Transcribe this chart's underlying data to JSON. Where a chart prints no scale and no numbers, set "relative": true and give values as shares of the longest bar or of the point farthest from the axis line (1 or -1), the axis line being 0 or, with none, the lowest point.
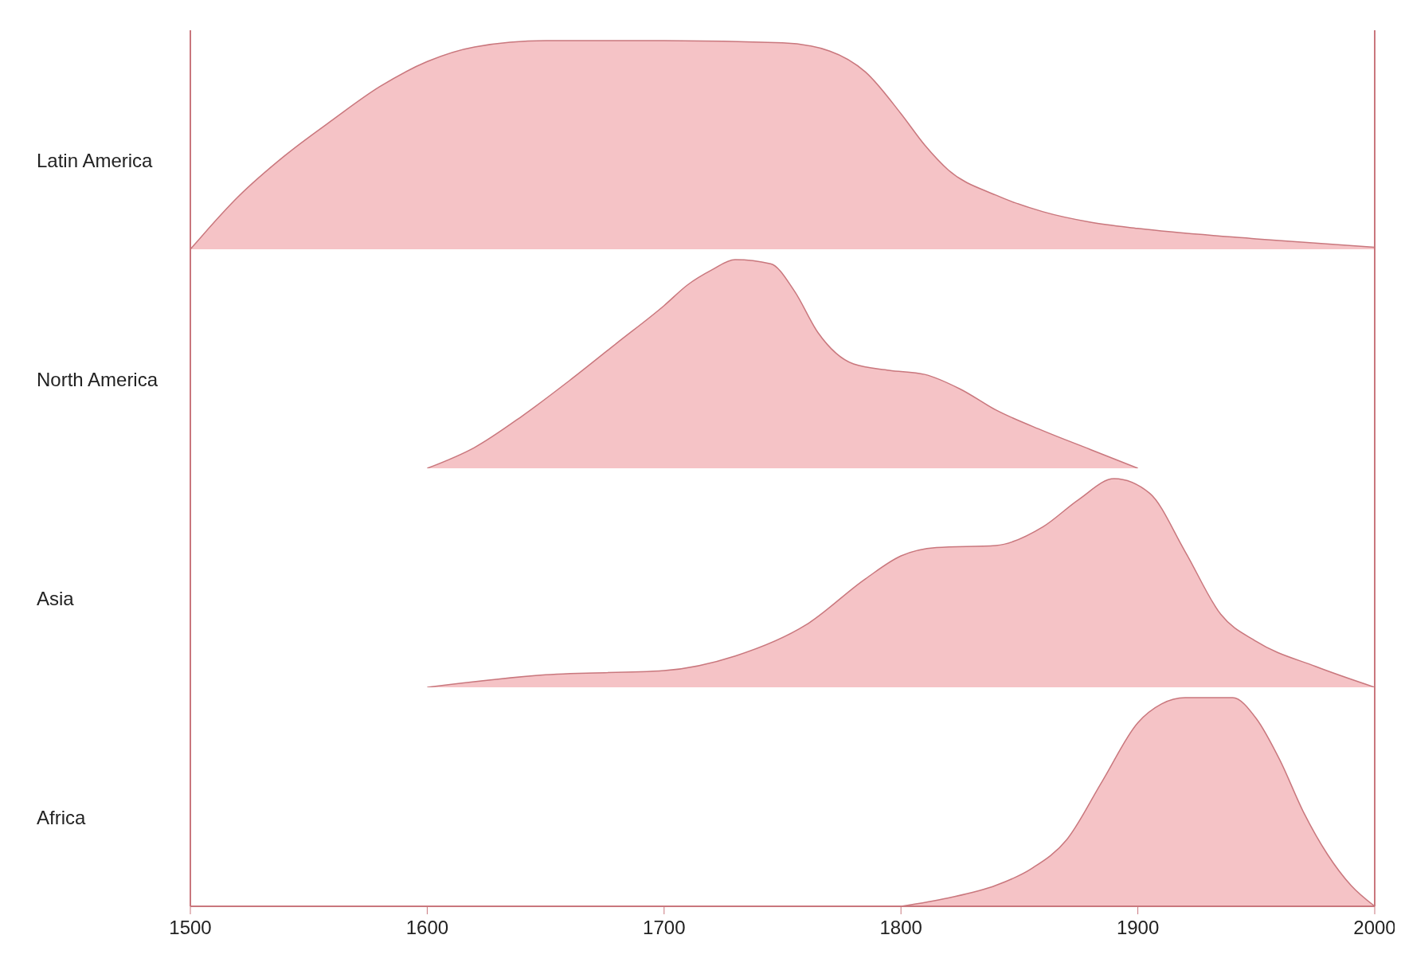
{
  "chart_data": [
    {
      "type": "area",
      "ylabel": "Latin America",
      "relative": true,
      "x": [
        1500,
        1520,
        1540,
        1560,
        1580,
        1600,
        1620,
        1650,
        1700,
        1750,
        1770,
        1785,
        1800,
        1810,
        1820,
        1840,
        1860,
        1880,
        1900,
        1950,
        2000
      ],
      "values": [
        0,
        0.25,
        0.45,
        0.62,
        0.78,
        0.9,
        0.97,
        1.0,
        1.0,
        0.99,
        0.95,
        0.85,
        0.65,
        0.5,
        0.38,
        0.26,
        0.18,
        0.13,
        0.1,
        0.05,
        0.01
      ],
      "color": "#f5c3c6",
      "xlim": [
        1500,
        2000
      ],
      "xticks": [
        1500,
        1600,
        1700,
        1800,
        1900,
        2000
      ],
      "tick_labels": false
    },
    {
      "type": "area",
      "ylabel": "North America",
      "relative": true,
      "x": [
        1600,
        1620,
        1640,
        1660,
        1680,
        1700,
        1710,
        1720,
        1730,
        1745,
        1755,
        1765,
        1780,
        1795,
        1810,
        1825,
        1840,
        1860,
        1880,
        1900
      ],
      "values": [
        0,
        0.1,
        0.25,
        0.42,
        0.6,
        0.78,
        0.88,
        0.95,
        1.0,
        0.98,
        0.85,
        0.65,
        0.5,
        0.47,
        0.45,
        0.38,
        0.28,
        0.18,
        0.09,
        0
      ],
      "color": "#f5c3c6",
      "xlim": [
        1500,
        2000
      ],
      "xticks": [
        1500,
        1600,
        1700,
        1800,
        1900,
        2000
      ],
      "tick_labels": false
    },
    {
      "type": "area",
      "ylabel": "Asia",
      "relative": true,
      "x": [
        1600,
        1650,
        1700,
        1730,
        1760,
        1785,
        1800,
        1815,
        1840,
        1860,
        1875,
        1890,
        1905,
        1920,
        1935,
        1950,
        1975,
        2000
      ],
      "values": [
        0,
        0.06,
        0.08,
        0.15,
        0.3,
        0.52,
        0.63,
        0.67,
        0.68,
        0.77,
        0.9,
        1.0,
        0.93,
        0.65,
        0.35,
        0.22,
        0.1,
        0
      ],
      "color": "#f5c3c6",
      "xlim": [
        1500,
        2000
      ],
      "xticks": [
        1500,
        1600,
        1700,
        1800,
        1900,
        2000
      ],
      "tick_labels": false
    },
    {
      "type": "area",
      "ylabel": "Africa",
      "relative": true,
      "x": [
        1800,
        1820,
        1840,
        1855,
        1870,
        1885,
        1900,
        1910,
        1920,
        1940,
        1950,
        1960,
        1970,
        1980,
        1990,
        2000
      ],
      "values": [
        0,
        0.04,
        0.1,
        0.18,
        0.32,
        0.6,
        0.88,
        0.97,
        1.0,
        1.0,
        0.9,
        0.7,
        0.45,
        0.25,
        0.1,
        0
      ],
      "color": "#f5c3c6",
      "xlim": [
        1500,
        2000
      ],
      "xticks": [
        1500,
        1600,
        1700,
        1800,
        1900,
        2000
      ],
      "tick_labels": "x"
    }
  ]
}
